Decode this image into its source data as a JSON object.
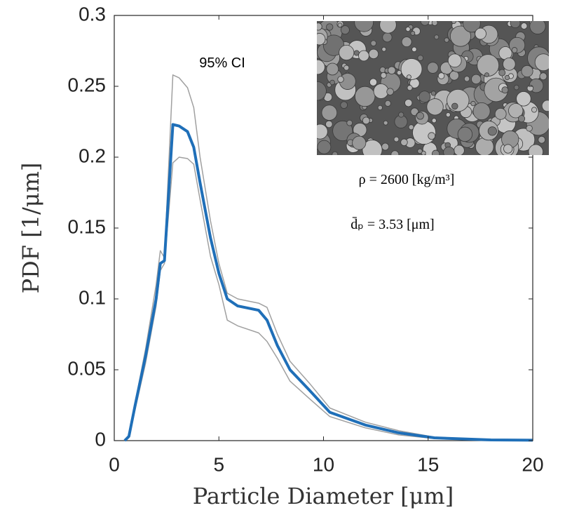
{
  "chart_data": {
    "type": "line",
    "xlabel": "Particle Diameter [μm]",
    "ylabel": "PDF [1/μm]",
    "x": [
      0.5,
      0.7,
      1.0,
      1.5,
      2.0,
      2.2,
      2.4,
      2.8,
      3.1,
      3.5,
      3.8,
      4.1,
      4.6,
      5.0,
      5.4,
      5.9,
      6.9,
      7.3,
      7.8,
      8.4,
      9.3,
      10.3,
      12,
      13.6,
      15.3,
      18,
      20
    ],
    "series": [
      {
        "color": "#a0a0a0",
        "width": 1.5,
        "values": [
          0,
          0.004,
          0.027,
          0.065,
          0.11,
          0.134,
          0.129,
          0.258,
          0.256,
          0.249,
          0.235,
          0.2,
          0.155,
          0.125,
          0.104,
          0.1,
          0.097,
          0.094,
          0.075,
          0.056,
          0.041,
          0.023,
          0.013,
          0.007,
          0.0025,
          0.0007,
          0.0004
        ]
      },
      {
        "color": "#a0a0a0",
        "width": 1.5,
        "values": [
          0,
          0.002,
          0.022,
          0.055,
          0.095,
          0.12,
          0.125,
          0.196,
          0.2,
          0.199,
          0.195,
          0.17,
          0.13,
          0.11,
          0.085,
          0.081,
          0.076,
          0.07,
          0.058,
          0.042,
          0.03,
          0.017,
          0.009,
          0.004,
          0.0015,
          0.0003,
          0.0002
        ]
      },
      {
        "color": "#1f6fb8",
        "width": 4,
        "values": [
          0,
          0.003,
          0.025,
          0.06,
          0.1,
          0.125,
          0.127,
          0.223,
          0.222,
          0.218,
          0.207,
          0.182,
          0.143,
          0.118,
          0.1,
          0.095,
          0.092,
          0.085,
          0.067,
          0.05,
          0.036,
          0.02,
          0.011,
          0.0055,
          0.002,
          0.0005,
          0.0003
        ]
      }
    ],
    "xlim": [
      0,
      20
    ],
    "xticks": [
      0,
      5,
      10,
      15,
      20
    ],
    "ylim": [
      0,
      0.3
    ],
    "yticks": [
      0,
      0.05,
      0.1,
      0.15,
      0.2,
      0.25,
      0.3
    ],
    "annotations": [
      "95% CI",
      "ρ = 2600 [kg/m³]",
      "d̄ₚ = 3.53 [μm]"
    ]
  }
}
